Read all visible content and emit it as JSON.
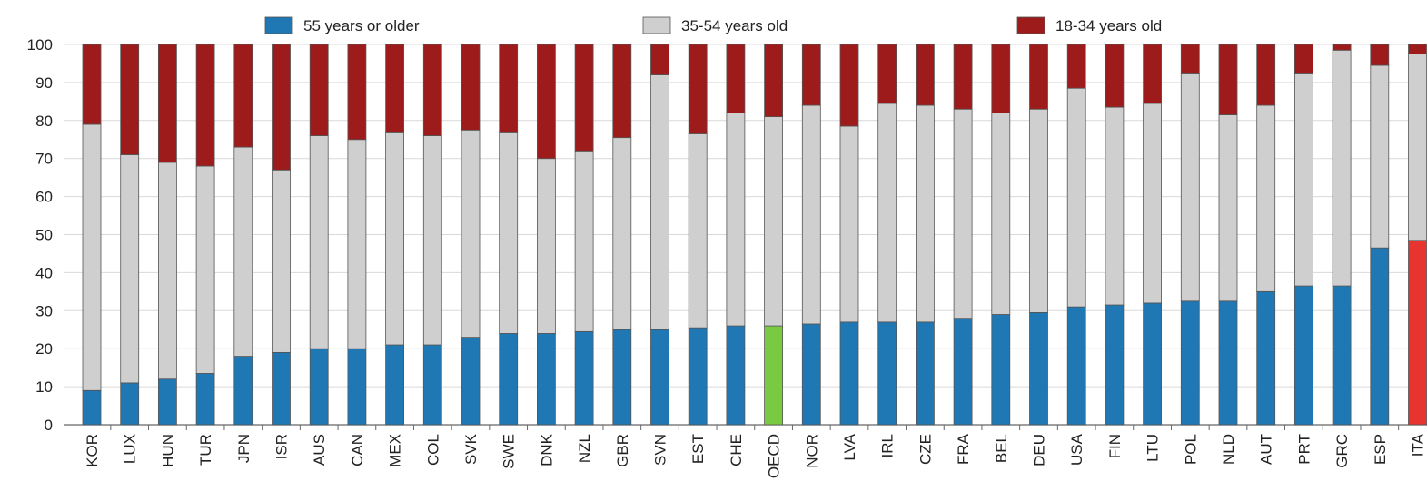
{
  "chart_data": {
    "type": "bar",
    "stacked": true,
    "title": "",
    "xlabel": "",
    "ylabel": "",
    "ylim": [
      0,
      100
    ],
    "yticks": [
      0,
      10,
      20,
      30,
      40,
      50,
      60,
      70,
      80,
      90,
      100
    ],
    "grid": true,
    "legend_position": "top",
    "categories": [
      "KOR",
      "LUX",
      "HUN",
      "TUR",
      "JPN",
      "ISR",
      "AUS",
      "CAN",
      "MEX",
      "COL",
      "SVK",
      "SWE",
      "DNK",
      "NZL",
      "GBR",
      "SVN",
      "EST",
      "CHE",
      "OECD",
      "NOR",
      "LVA",
      "IRL",
      "CZE",
      "FRA",
      "BEL",
      "DEU",
      "USA",
      "FIN",
      "LTU",
      "POL",
      "NLD",
      "AUT",
      "PRT",
      "GRC",
      "ESP",
      "ITA"
    ],
    "highlight": {
      "OECD": {
        "55 years or older": "#7ac943"
      },
      "ITA": {
        "55 years or older": "#e8342e"
      }
    },
    "series": [
      {
        "name": "55 years or older",
        "color": "#1f78b4",
        "values": [
          9,
          11,
          12,
          13.5,
          18,
          19,
          20,
          20,
          21,
          21,
          23,
          24,
          24,
          24.5,
          25,
          25,
          25.5,
          26,
          26,
          26.5,
          27,
          27,
          27,
          28,
          29,
          29.5,
          31,
          31.5,
          32,
          32.5,
          32.5,
          35,
          36.5,
          36.5,
          46.5,
          48.5
        ]
      },
      {
        "name": "35-54 years old",
        "color": "#cfcfcf",
        "values": [
          70,
          60,
          57,
          54.5,
          55,
          48,
          56,
          55,
          56,
          55,
          54.5,
          53,
          46,
          47.5,
          50.5,
          67,
          51,
          56,
          55,
          57.5,
          51.5,
          57.5,
          57,
          55,
          53,
          53.5,
          57.5,
          52,
          52.5,
          60,
          49,
          49,
          56,
          62,
          48,
          49
        ]
      },
      {
        "name": "18-34 years old",
        "color": "#9e1b1b",
        "values": [
          21,
          29,
          31,
          32,
          27,
          33,
          24,
          25,
          23,
          24,
          22.5,
          23,
          30,
          28,
          24.5,
          8,
          23.5,
          18,
          19,
          16,
          21.5,
          15.5,
          16,
          17,
          18,
          17,
          11.5,
          16.5,
          15.5,
          7.5,
          18.5,
          16,
          7.5,
          1.5,
          5.5,
          2.5
        ]
      }
    ]
  }
}
